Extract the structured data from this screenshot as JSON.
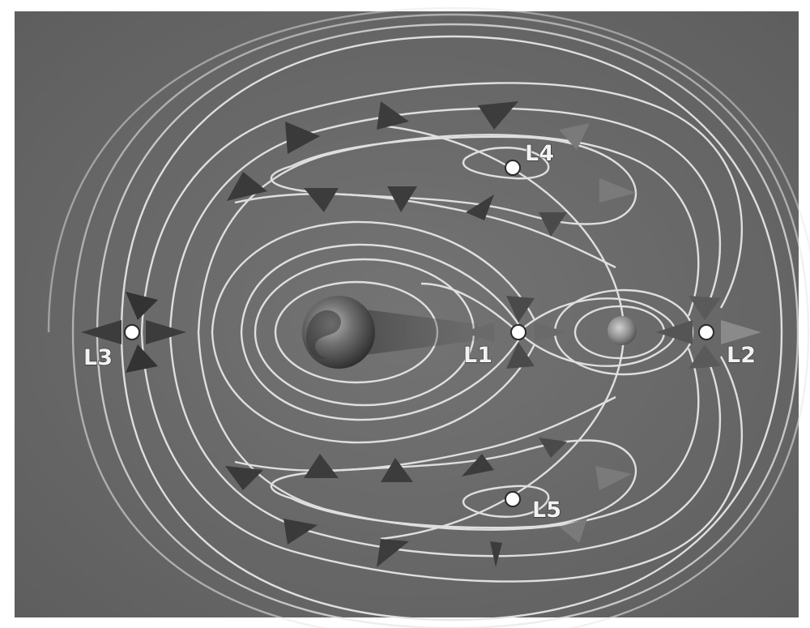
{
  "diagram": {
    "points": [
      {
        "id": "L1",
        "label": "L1"
      },
      {
        "id": "L2",
        "label": "L2"
      },
      {
        "id": "L3",
        "label": "L3"
      },
      {
        "id": "L4",
        "label": "L4"
      },
      {
        "id": "L5",
        "label": "L5"
      }
    ],
    "bodies": [
      {
        "id": "earth",
        "icon": "earth-icon"
      },
      {
        "id": "moon",
        "icon": "moon-icon"
      }
    ],
    "colors": {
      "background": "#6b6b6b",
      "contour": "#e6e6e6",
      "arrow_dark": "#3c3c3c",
      "arrow_light": "#8a8a8a",
      "point": "#ffffff"
    }
  }
}
